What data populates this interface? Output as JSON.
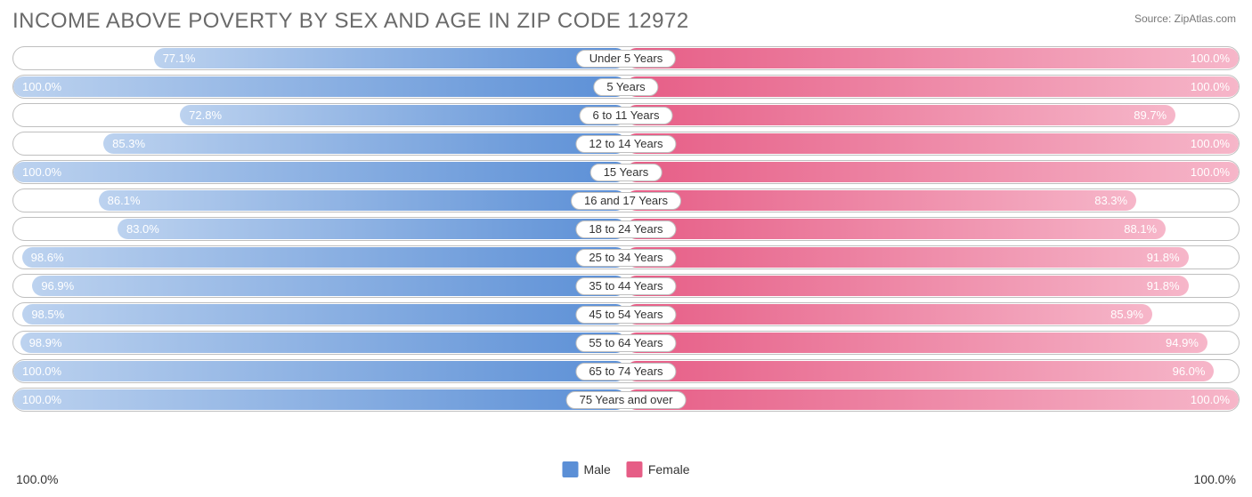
{
  "title": "INCOME ABOVE POVERTY BY SEX AND AGE IN ZIP CODE 12972",
  "source": "Source: ZipAtlas.com",
  "title_color": "#6a6a6a",
  "title_fontsize": 24,
  "background_color": "#ffffff",
  "row_border_color": "#bfbfbf",
  "pill_border_color": "#bfbfbf",
  "male": {
    "label": "Male",
    "solid_color": "#5b8fd6",
    "grad_start": "#5b8fd6",
    "grad_end": "#bcd2ef",
    "value_text_color": "#ffffff"
  },
  "female": {
    "label": "Female",
    "solid_color": "#e65d86",
    "grad_start": "#e65d86",
    "grad_end": "#f6b6c9",
    "value_text_color": "#ffffff"
  },
  "axis": {
    "left": "100.0%",
    "right": "100.0%",
    "axis_fontsize": 14,
    "axis_color": "#333333"
  },
  "value_label_fontsize": 13,
  "category_label_fontsize": 13,
  "legend_swatch_size": 18,
  "rows": [
    {
      "category": "Under 5 Years",
      "male": 77.1,
      "male_label": "77.1%",
      "female": 100.0,
      "female_label": "100.0%"
    },
    {
      "category": "5 Years",
      "male": 100.0,
      "male_label": "100.0%",
      "female": 100.0,
      "female_label": "100.0%"
    },
    {
      "category": "6 to 11 Years",
      "male": 72.8,
      "male_label": "72.8%",
      "female": 89.7,
      "female_label": "89.7%"
    },
    {
      "category": "12 to 14 Years",
      "male": 85.3,
      "male_label": "85.3%",
      "female": 100.0,
      "female_label": "100.0%"
    },
    {
      "category": "15 Years",
      "male": 100.0,
      "male_label": "100.0%",
      "female": 100.0,
      "female_label": "100.0%"
    },
    {
      "category": "16 and 17 Years",
      "male": 86.1,
      "male_label": "86.1%",
      "female": 83.3,
      "female_label": "83.3%"
    },
    {
      "category": "18 to 24 Years",
      "male": 83.0,
      "male_label": "83.0%",
      "female": 88.1,
      "female_label": "88.1%"
    },
    {
      "category": "25 to 34 Years",
      "male": 98.6,
      "male_label": "98.6%",
      "female": 91.8,
      "female_label": "91.8%"
    },
    {
      "category": "35 to 44 Years",
      "male": 96.9,
      "male_label": "96.9%",
      "female": 91.8,
      "female_label": "91.8%"
    },
    {
      "category": "45 to 54 Years",
      "male": 98.5,
      "male_label": "98.5%",
      "female": 85.9,
      "female_label": "85.9%"
    },
    {
      "category": "55 to 64 Years",
      "male": 98.9,
      "male_label": "98.9%",
      "female": 94.9,
      "female_label": "94.9%"
    },
    {
      "category": "65 to 74 Years",
      "male": 100.0,
      "male_label": "100.0%",
      "female": 96.0,
      "female_label": "96.0%"
    },
    {
      "category": "75 Years and over",
      "male": 100.0,
      "male_label": "100.0%",
      "female": 100.0,
      "female_label": "100.0%"
    }
  ]
}
